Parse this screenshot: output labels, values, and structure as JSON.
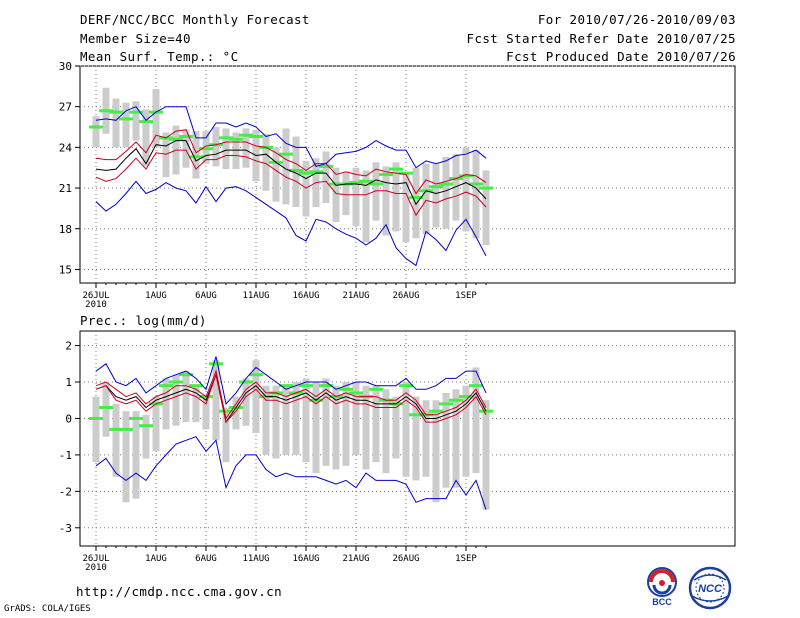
{
  "header": {
    "title": "DERF/NCC/BCC Monthly Forecast",
    "member": "Member Size=40",
    "variable": "Mean Surf. Temp.: °C",
    "period": "For 2010/07/26-2010/09/03",
    "refer": "Fcst Started Refer Date 2010/07/25",
    "produced": "Fcst Produced Date 2010/07/26"
  },
  "footer": {
    "url": "http://cmdp.ncc.cma.gov.cn",
    "grads": "GrADS: COLA/IGES",
    "logo_bcc": "BCC",
    "logo_ncc": "NCC"
  },
  "colors": {
    "max_line": "#0000cc",
    "min_line": "#0000cc",
    "upper_line": "#cc0022",
    "lower_line": "#cc0022",
    "mean_line": "#000000",
    "box": "#cccccc",
    "median": "#44ee44",
    "grid": "#777777"
  },
  "chart_data": [
    {
      "type": "line",
      "title": "Mean Surf. Temp.: °C",
      "ylim": [
        14,
        30
      ],
      "yticks": [
        15,
        18,
        21,
        24,
        27,
        30
      ],
      "x_range": [
        0,
        39
      ],
      "xticks": [
        {
          "day": 0,
          "label": "26JUL",
          "sub": "2010"
        },
        {
          "day": 6,
          "label": "1AUG"
        },
        {
          "day": 11,
          "label": "6AUG"
        },
        {
          "day": 16,
          "label": "11AUG"
        },
        {
          "day": 21,
          "label": "16AUG"
        },
        {
          "day": 26,
          "label": "21AUG"
        },
        {
          "day": 31,
          "label": "26AUG"
        },
        {
          "day": 37,
          "label": "1SEP"
        }
      ],
      "grid": true,
      "series": [
        {
          "name": "max",
          "values": [
            20.0,
            19.3,
            19.8,
            20.6,
            21.5,
            20.6,
            20.9,
            21.4,
            21.0,
            20.8,
            19.9,
            21.1,
            20.0,
            21.0,
            21.1,
            20.8,
            20.3,
            19.8,
            19.3,
            18.8,
            17.5,
            17.1,
            18.7,
            18.5,
            18.0,
            17.6,
            17.3,
            16.8,
            17.3,
            18.3,
            16.6,
            15.8,
            15.3,
            17.8,
            17.2,
            16.4,
            17.9,
            18.7,
            17.4,
            16.0
          ]
        },
        {
          "name": "upper",
          "values": [
            23.2,
            23.1,
            23.1,
            23.7,
            24.4,
            23.6,
            24.9,
            24.7,
            25.2,
            25.3,
            23.6,
            24.1,
            24.2,
            24.4,
            24.4,
            24.4,
            24.1,
            24.0,
            23.6,
            23.1,
            22.8,
            22.3,
            22.8,
            22.8,
            22.0,
            22.2,
            22.0,
            21.9,
            22.4,
            22.2,
            22.1,
            22.0,
            20.6,
            21.6,
            21.3,
            21.5,
            21.7,
            22.0,
            21.9,
            21.4
          ]
        },
        {
          "name": "mean",
          "values": [
            22.4,
            22.3,
            22.4,
            23.2,
            23.9,
            22.8,
            24.2,
            24.1,
            24.5,
            24.5,
            23.0,
            23.4,
            23.5,
            23.8,
            23.8,
            23.8,
            23.4,
            23.5,
            22.9,
            22.4,
            22.1,
            21.7,
            22.1,
            22.1,
            21.2,
            21.3,
            21.3,
            21.2,
            21.6,
            21.4,
            21.3,
            21.4,
            19.8,
            20.8,
            20.6,
            20.8,
            21.1,
            21.4,
            21.0,
            20.2
          ]
        },
        {
          "name": "lower",
          "values": [
            21.8,
            21.5,
            21.7,
            22.4,
            23.2,
            22.4,
            23.6,
            23.5,
            23.8,
            23.8,
            22.4,
            23.1,
            23.1,
            23.4,
            23.4,
            23.3,
            23.0,
            22.8,
            22.3,
            21.8,
            21.5,
            21.0,
            21.4,
            21.5,
            20.6,
            20.5,
            20.5,
            20.5,
            20.8,
            20.8,
            20.6,
            20.6,
            19.0,
            20.1,
            19.9,
            20.2,
            20.4,
            20.7,
            20.4,
            19.6
          ]
        },
        {
          "name": "min",
          "values": [
            26.0,
            26.1,
            26.0,
            26.7,
            27.0,
            26.0,
            26.6,
            27.0,
            27.0,
            27.0,
            24.7,
            24.7,
            25.8,
            25.8,
            25.5,
            25.8,
            25.5,
            24.8,
            25.0,
            24.3,
            24.0,
            24.0,
            22.6,
            22.8,
            23.5,
            23.6,
            23.7,
            24.0,
            24.5,
            24.1,
            23.8,
            23.8,
            22.5,
            23.0,
            22.8,
            23.0,
            23.4,
            23.5,
            23.8,
            23.2
          ]
        }
      ],
      "boxes": [
        {
          "low": 24.0,
          "high": 26.3,
          "median": 25.5
        },
        {
          "low": 25.0,
          "high": 28.4,
          "median": 26.7
        },
        {
          "low": 24.0,
          "high": 27.6,
          "median": 26.6
        },
        {
          "low": 24.0,
          "high": 27.3,
          "median": 26.1
        },
        {
          "low": 24.5,
          "high": 27.4,
          "median": 26.6
        },
        {
          "low": 22.6,
          "high": 26.8,
          "median": 25.9
        },
        {
          "low": 24.0,
          "high": 28.3,
          "median": 26.6
        },
        {
          "low": 21.8,
          "high": 25.1,
          "median": 24.7
        },
        {
          "low": 22.0,
          "high": 25.6,
          "median": 24.6
        },
        {
          "low": 22.5,
          "high": 25.3,
          "median": 24.8
        },
        {
          "low": 21.7,
          "high": 25.2,
          "median": 23.3
        },
        {
          "low": 22.8,
          "high": 25.2,
          "median": 23.9
        },
        {
          "low": 22.6,
          "high": 25.5,
          "median": 24.2
        },
        {
          "low": 22.4,
          "high": 25.4,
          "median": 24.7
        },
        {
          "low": 22.4,
          "high": 25.1,
          "median": 24.6
        },
        {
          "low": 22.5,
          "high": 25.4,
          "median": 24.9
        },
        {
          "low": 21.5,
          "high": 25.3,
          "median": 24.8
        },
        {
          "low": 20.8,
          "high": 25.0,
          "median": 24.0
        },
        {
          "low": 20.0,
          "high": 24.0,
          "median": 22.9
        },
        {
          "low": 19.8,
          "high": 25.4,
          "median": 23.5
        },
        {
          "low": 19.6,
          "high": 24.8,
          "median": 22.3
        },
        {
          "low": 18.9,
          "high": 23.0,
          "median": 22.1
        },
        {
          "low": 19.6,
          "high": 23.2,
          "median": 22.2
        },
        {
          "low": 19.9,
          "high": 23.7,
          "median": 22.6
        },
        {
          "low": 18.5,
          "high": 22.5,
          "median": 21.3
        },
        {
          "low": 19.0,
          "high": 22.2,
          "median": 21.3
        },
        {
          "low": 18.2,
          "high": 22.5,
          "median": 21.4
        },
        {
          "low": 17.0,
          "high": 22.3,
          "median": 21.5
        },
        {
          "low": 18.6,
          "high": 22.9,
          "median": 21.3
        },
        {
          "low": 17.5,
          "high": 22.6,
          "median": 22.0
        },
        {
          "low": 17.8,
          "high": 22.9,
          "median": 22.4
        },
        {
          "low": 17.0,
          "high": 22.0,
          "median": 22.1
        },
        {
          "low": 17.3,
          "high": 22.5,
          "median": 20.3
        },
        {
          "low": 17.6,
          "high": 22.8,
          "median": 20.8
        },
        {
          "low": 18.1,
          "high": 22.8,
          "median": 21.1
        },
        {
          "low": 18.0,
          "high": 23.3,
          "median": 21.3
        },
        {
          "low": 18.6,
          "high": 23.5,
          "median": 21.7
        },
        {
          "low": 17.8,
          "high": 24.0,
          "median": 21.9
        },
        {
          "low": 17.3,
          "high": 23.8,
          "median": 21.3
        },
        {
          "low": 16.8,
          "high": 22.3,
          "median": 21.0
        }
      ]
    },
    {
      "type": "line",
      "title": "Prec.: log(mm/d)",
      "ylim": [
        -3.5,
        2.4
      ],
      "yticks": [
        -3,
        -2,
        -1,
        0,
        1,
        2
      ],
      "x_range": [
        0,
        39
      ],
      "xticks": [
        {
          "day": 0,
          "label": "26JUL",
          "sub": "2010"
        },
        {
          "day": 6,
          "label": "1AUG"
        },
        {
          "day": 11,
          "label": "6AUG"
        },
        {
          "day": 16,
          "label": "11AUG"
        },
        {
          "day": 21,
          "label": "16AUG"
        },
        {
          "day": 26,
          "label": "21AUG"
        },
        {
          "day": 31,
          "label": "26AUG"
        },
        {
          "day": 37,
          "label": "1SEP"
        }
      ],
      "grid": true,
      "series": [
        {
          "name": "max",
          "values": [
            1.3,
            1.5,
            1.0,
            0.9,
            1.1,
            0.7,
            0.9,
            1.1,
            1.2,
            1.3,
            1.1,
            0.8,
            1.7,
            0.4,
            0.7,
            1.1,
            1.4,
            1.2,
            1.0,
            0.8,
            0.9,
            1.0,
            1.0,
            1.0,
            0.8,
            0.9,
            1.0,
            1.0,
            0.9,
            0.9,
            0.9,
            1.1,
            0.8,
            0.8,
            0.9,
            1.1,
            1.1,
            1.3,
            1.3,
            0.7
          ]
        },
        {
          "name": "upper",
          "values": [
            0.9,
            1.0,
            0.8,
            0.6,
            0.7,
            0.4,
            0.6,
            0.7,
            0.9,
            0.9,
            0.8,
            0.6,
            1.3,
            0.0,
            0.4,
            0.8,
            1.0,
            0.7,
            0.7,
            0.6,
            0.7,
            0.8,
            0.6,
            0.8,
            0.6,
            0.7,
            0.6,
            0.6,
            0.6,
            0.5,
            0.5,
            0.7,
            0.5,
            0.1,
            0.1,
            0.2,
            0.3,
            0.5,
            0.8,
            0.3
          ]
        },
        {
          "name": "mean",
          "values": [
            0.8,
            0.9,
            0.6,
            0.5,
            0.6,
            0.3,
            0.5,
            0.6,
            0.7,
            0.8,
            0.7,
            0.5,
            1.2,
            -0.1,
            0.3,
            0.7,
            0.9,
            0.6,
            0.6,
            0.5,
            0.6,
            0.7,
            0.5,
            0.7,
            0.5,
            0.6,
            0.5,
            0.5,
            0.4,
            0.4,
            0.4,
            0.6,
            0.4,
            0.0,
            0.0,
            0.1,
            0.2,
            0.4,
            0.7,
            0.2
          ]
        },
        {
          "name": "lower",
          "values": [
            0.8,
            0.9,
            0.5,
            0.4,
            0.5,
            0.2,
            0.4,
            0.5,
            0.6,
            0.7,
            0.6,
            0.4,
            1.2,
            -0.1,
            0.2,
            0.6,
            0.8,
            0.5,
            0.5,
            0.4,
            0.5,
            0.6,
            0.4,
            0.6,
            0.4,
            0.5,
            0.4,
            0.4,
            0.3,
            0.3,
            0.3,
            0.5,
            0.3,
            -0.1,
            -0.1,
            0.0,
            0.1,
            0.3,
            0.6,
            0.1
          ]
        },
        {
          "name": "min",
          "values": [
            -1.3,
            -1.1,
            -1.5,
            -1.7,
            -1.5,
            -1.7,
            -1.3,
            -1.0,
            -0.7,
            -0.6,
            -0.5,
            -0.9,
            -0.6,
            -1.9,
            -1.3,
            -1.0,
            -1.0,
            -1.4,
            -1.6,
            -1.5,
            -1.6,
            -1.6,
            -1.6,
            -1.7,
            -1.8,
            -1.7,
            -1.9,
            -1.5,
            -1.7,
            -1.7,
            -1.7,
            -1.8,
            -2.3,
            -2.2,
            -2.2,
            -2.2,
            -1.7,
            -2.1,
            -1.7,
            -2.5
          ]
        }
      ],
      "boxes": [
        {
          "low": -1.2,
          "high": 0.6,
          "median": 0.0
        },
        {
          "low": -0.5,
          "high": 1.0,
          "median": 0.3
        },
        {
          "low": -1.6,
          "high": 0.4,
          "median": -0.3
        },
        {
          "low": -2.3,
          "high": 0.2,
          "median": -0.3
        },
        {
          "low": -2.2,
          "high": 0.2,
          "median": 0.0
        },
        {
          "low": -1.1,
          "high": 0.1,
          "median": -0.2
        },
        {
          "low": -0.9,
          "high": 0.6,
          "median": 0.4
        },
        {
          "low": -0.3,
          "high": 1.1,
          "median": 0.9
        },
        {
          "low": -0.2,
          "high": 1.2,
          "median": 1.0
        },
        {
          "low": -0.1,
          "high": 1.3,
          "median": 1.2
        },
        {
          "low": -0.1,
          "high": 0.9,
          "median": 0.9
        },
        {
          "low": -0.3,
          "high": 0.6,
          "median": 0.6
        },
        {
          "low": -0.6,
          "high": 1.6,
          "median": 1.5
        },
        {
          "low": -1.2,
          "high": 0.3,
          "median": 0.2
        },
        {
          "low": -0.3,
          "high": 0.6,
          "median": 0.3
        },
        {
          "low": -0.2,
          "high": 1.1,
          "median": 1.0
        },
        {
          "low": -0.4,
          "high": 1.6,
          "median": 1.2
        },
        {
          "low": -1.0,
          "high": 0.9,
          "median": 0.6
        },
        {
          "low": -1.1,
          "high": 0.9,
          "median": 0.7
        },
        {
          "low": -1.0,
          "high": 0.9,
          "median": 0.9
        },
        {
          "low": -1.0,
          "high": 1.0,
          "median": 0.7
        },
        {
          "low": -1.2,
          "high": 1.1,
          "median": 0.9
        },
        {
          "low": -1.5,
          "high": 1.0,
          "median": 0.5
        },
        {
          "low": -1.3,
          "high": 1.1,
          "median": 0.9
        },
        {
          "low": -1.4,
          "high": 0.9,
          "median": 0.6
        },
        {
          "low": -1.3,
          "high": 1.0,
          "median": 0.8
        },
        {
          "low": -1.0,
          "high": 1.0,
          "median": 0.7
        },
        {
          "low": -1.4,
          "high": 0.9,
          "median": 0.6
        },
        {
          "low": -1.2,
          "high": 0.9,
          "median": 0.8
        },
        {
          "low": -1.5,
          "high": 0.8,
          "median": 0.5
        },
        {
          "low": -1.1,
          "high": 0.6,
          "median": 0.4
        },
        {
          "low": -1.6,
          "high": 1.0,
          "median": 0.9
        },
        {
          "low": -1.7,
          "high": 0.6,
          "median": 0.1
        },
        {
          "low": -1.6,
          "high": 0.5,
          "median": 0.1
        },
        {
          "low": -2.3,
          "high": 0.5,
          "median": 0.2
        },
        {
          "low": -1.9,
          "high": 0.7,
          "median": 0.4
        },
        {
          "low": -1.9,
          "high": 0.8,
          "median": 0.5
        },
        {
          "low": -1.6,
          "high": 0.9,
          "median": 0.6
        },
        {
          "low": -1.5,
          "high": 1.4,
          "median": 0.9
        },
        {
          "low": -2.5,
          "high": 0.5,
          "median": 0.2
        }
      ]
    }
  ]
}
